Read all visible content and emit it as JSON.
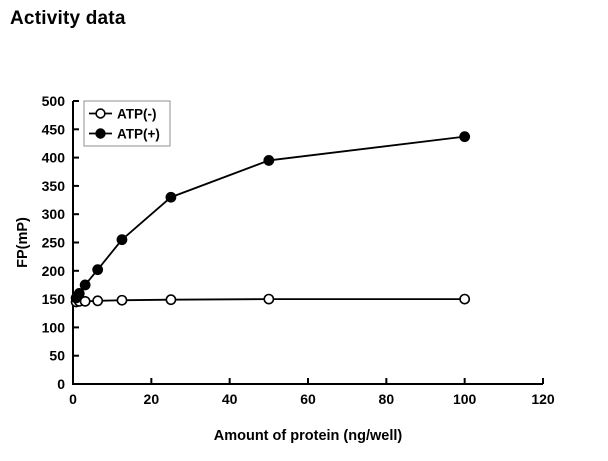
{
  "page": {
    "background": "#ffffff",
    "ink": "#000000"
  },
  "chart_data": {
    "type": "line",
    "title": "Activity data",
    "xlabel": "Amount of protein (ng/well)",
    "ylabel": "FP(mP)",
    "xlim": [
      0,
      120
    ],
    "ylim": [
      0,
      500
    ],
    "xtick_step": 20,
    "ytick_step": 50,
    "grid": false,
    "legend_position": "top-left",
    "legend_border_color": "#909090",
    "x": [
      0.8,
      1.6,
      3.1,
      6.3,
      12.5,
      25,
      50,
      100
    ],
    "series": [
      {
        "name": "ATP(-)",
        "marker": "open-circle",
        "color": "#000000",
        "values": [
          145,
          146,
          146,
          147,
          148,
          149,
          150,
          150
        ]
      },
      {
        "name": "ATP(+)",
        "marker": "filled-circle",
        "color": "#000000",
        "values": [
          152,
          160,
          175,
          202,
          255,
          330,
          395,
          437
        ]
      }
    ]
  }
}
